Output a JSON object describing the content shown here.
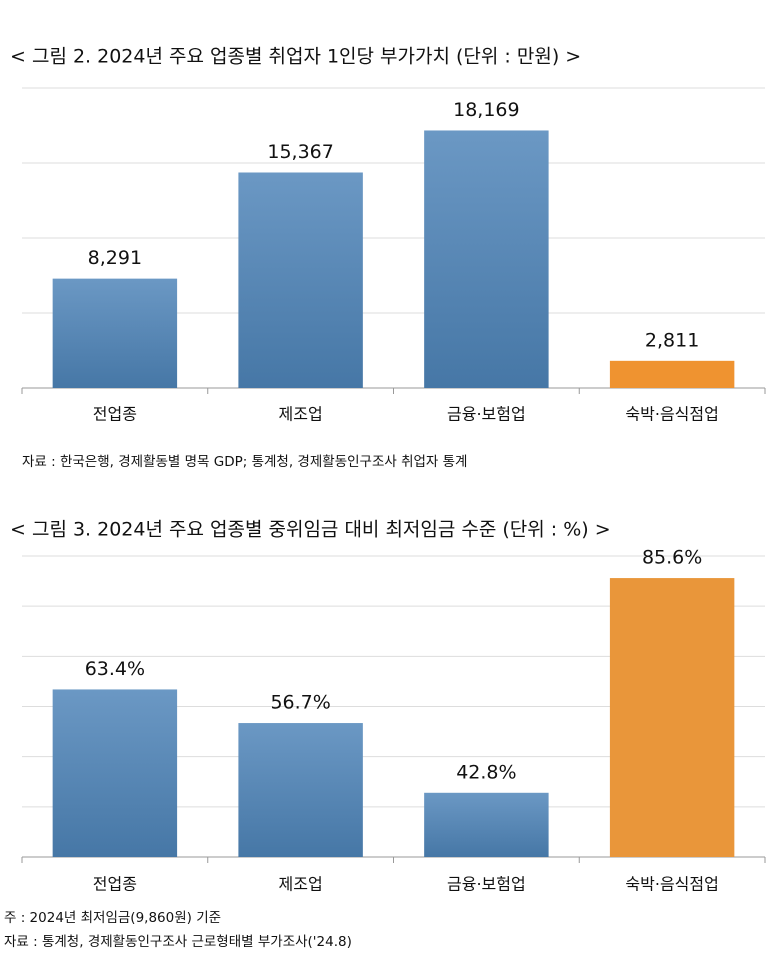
{
  "chart_data": [
    {
      "type": "bar",
      "title": "< 그림 2. 2024년 주요 업종별 취업자 1인당 부가가치 (단위 : 만원) >",
      "categories": [
        "전업종",
        "제조업",
        "금융·보험업",
        "숙박·음식점업"
      ],
      "values": [
        8291,
        15367,
        18169,
        2811
      ],
      "value_labels": [
        "8,291",
        "15,367",
        "18,169",
        "2,811"
      ],
      "colors": [
        "#5b8bb9",
        "#5b8bb9",
        "#5b8bb9",
        "#ef9330"
      ],
      "ylim": [
        1000,
        21000
      ],
      "yticks": [
        1000,
        6000,
        11000,
        16000,
        21000
      ],
      "grid": true,
      "notes": [
        "자료 : 한국은행, 경제활동별 명목 GDP; 통계청, 경제활동인구조사 취업자 통계"
      ]
    },
    {
      "type": "bar",
      "title": "<  그림 3. 2024년 주요 업종별 중위임금 대비 최저임금 수준 (단위 : %) >",
      "categories": [
        "전업종",
        "제조업",
        "금융·보험업",
        "숙박·음식점업"
      ],
      "values": [
        63.4,
        56.7,
        42.8,
        85.6
      ],
      "value_labels": [
        "63.4%",
        "56.7%",
        "42.8%",
        "85.6%"
      ],
      "colors": [
        "#5b8bb9",
        "#5b8bb9",
        "#5b8bb9",
        "#e9963a"
      ],
      "ylim": [
        30,
        90
      ],
      "yticks": [
        30,
        40,
        50,
        60,
        70,
        80,
        90
      ],
      "grid": true,
      "notes": [
        "주 : 2024년 최저임금(9,860원) 기준",
        "자료 : 통계청, 경제활동인구조사 근로형태별 부가조사('24.8)"
      ]
    }
  ]
}
